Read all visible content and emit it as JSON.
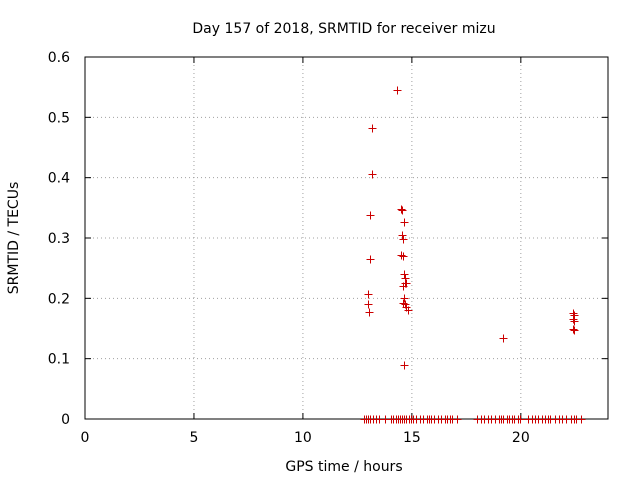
{
  "chart_data": {
    "type": "scatter",
    "title": "Day 157 of 2018, SRMTID for receiver mizu",
    "xlabel": "GPS time / hours",
    "ylabel": "SRMTID / TECUs",
    "xlim": [
      0,
      24
    ],
    "ylim": [
      0,
      0.6
    ],
    "xticks": [
      0,
      5,
      10,
      15,
      20
    ],
    "xtick_labels": [
      "0",
      "5",
      "10",
      "15",
      "20"
    ],
    "yticks": [
      0,
      0.1,
      0.2,
      0.3,
      0.4,
      0.5,
      0.6
    ],
    "ytick_labels": [
      "0",
      "0.1",
      "0.2",
      "0.3",
      "0.4",
      "0.5",
      "0.6"
    ],
    "grid": true,
    "marker": "+",
    "series": [
      {
        "name": "SRMTID",
        "color": "#cc0000",
        "points": [
          [
            14.3,
            0.545
          ],
          [
            13.15,
            0.482
          ],
          [
            13.15,
            0.406
          ],
          [
            13.1,
            0.338
          ],
          [
            13.1,
            0.266
          ],
          [
            13.0,
            0.207
          ],
          [
            13.0,
            0.19
          ],
          [
            13.05,
            0.177
          ],
          [
            14.5,
            0.348
          ],
          [
            14.55,
            0.347
          ],
          [
            14.65,
            0.326
          ],
          [
            14.55,
            0.305
          ],
          [
            14.6,
            0.298
          ],
          [
            14.5,
            0.271
          ],
          [
            14.6,
            0.27
          ],
          [
            14.65,
            0.24
          ],
          [
            14.7,
            0.233
          ],
          [
            14.7,
            0.226
          ],
          [
            14.6,
            0.22
          ],
          [
            14.75,
            0.225
          ],
          [
            14.65,
            0.2
          ],
          [
            14.6,
            0.193
          ],
          [
            14.7,
            0.19
          ],
          [
            14.75,
            0.185
          ],
          [
            14.8,
            0.18
          ],
          [
            14.65,
            0.09
          ],
          [
            19.2,
            0.134
          ],
          [
            22.4,
            0.176
          ],
          [
            22.45,
            0.172
          ],
          [
            22.4,
            0.165
          ],
          [
            22.45,
            0.162
          ],
          [
            22.4,
            0.15
          ],
          [
            22.45,
            0.147
          ],
          [
            12.8,
            0
          ],
          [
            12.9,
            0
          ],
          [
            13.0,
            0
          ],
          [
            13.1,
            0
          ],
          [
            13.2,
            0
          ],
          [
            13.35,
            0
          ],
          [
            13.5,
            0
          ],
          [
            13.75,
            0
          ],
          [
            14.05,
            0
          ],
          [
            14.15,
            0
          ],
          [
            14.25,
            0
          ],
          [
            14.35,
            0
          ],
          [
            14.45,
            0
          ],
          [
            14.55,
            0
          ],
          [
            14.65,
            0
          ],
          [
            14.75,
            0
          ],
          [
            14.85,
            0
          ],
          [
            14.95,
            0
          ],
          [
            15.05,
            0
          ],
          [
            15.2,
            0
          ],
          [
            15.35,
            0
          ],
          [
            15.5,
            0
          ],
          [
            15.7,
            0
          ],
          [
            15.8,
            0
          ],
          [
            15.9,
            0
          ],
          [
            16.0,
            0
          ],
          [
            16.2,
            0
          ],
          [
            16.35,
            0
          ],
          [
            16.5,
            0
          ],
          [
            16.6,
            0
          ],
          [
            16.75,
            0
          ],
          [
            16.85,
            0
          ],
          [
            17.05,
            0
          ],
          [
            18.0,
            0
          ],
          [
            18.15,
            0
          ],
          [
            18.3,
            0
          ],
          [
            18.5,
            0
          ],
          [
            18.65,
            0
          ],
          [
            18.8,
            0
          ],
          [
            19.0,
            0
          ],
          [
            19.1,
            0
          ],
          [
            19.2,
            0
          ],
          [
            19.35,
            0
          ],
          [
            19.45,
            0
          ],
          [
            19.6,
            0
          ],
          [
            19.7,
            0
          ],
          [
            19.85,
            0
          ],
          [
            19.95,
            0
          ],
          [
            20.35,
            0
          ],
          [
            20.5,
            0
          ],
          [
            20.65,
            0
          ],
          [
            20.8,
            0
          ],
          [
            20.95,
            0
          ],
          [
            21.1,
            0
          ],
          [
            21.25,
            0
          ],
          [
            21.35,
            0
          ],
          [
            21.55,
            0
          ],
          [
            21.75,
            0
          ],
          [
            21.9,
            0
          ],
          [
            22.05,
            0
          ],
          [
            22.3,
            0
          ],
          [
            22.45,
            0
          ],
          [
            22.55,
            0
          ],
          [
            22.75,
            0
          ]
        ]
      }
    ]
  }
}
